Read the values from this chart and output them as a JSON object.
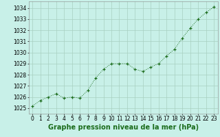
{
  "x": [
    0,
    1,
    2,
    3,
    4,
    5,
    6,
    7,
    8,
    9,
    10,
    11,
    12,
    13,
    14,
    15,
    16,
    17,
    18,
    19,
    20,
    21,
    22,
    23
  ],
  "y": [
    1025.2,
    1025.7,
    1026.0,
    1026.3,
    1025.9,
    1026.0,
    1025.9,
    1026.6,
    1027.7,
    1028.5,
    1029.0,
    1029.0,
    1029.0,
    1028.5,
    1028.3,
    1028.7,
    1029.0,
    1029.7,
    1030.3,
    1031.3,
    1032.2,
    1033.0,
    1033.6,
    1034.1
  ],
  "line_color": "#1a6b1a",
  "marker_color": "#1a6b1a",
  "bg_color": "#c8f0e8",
  "grid_color": "#a8cfc0",
  "title": "Graphe pression niveau de la mer (hPa)",
  "ylim_min": 1024.5,
  "ylim_max": 1034.6,
  "xlim_min": -0.5,
  "xlim_max": 23.5,
  "yticks": [
    1025,
    1026,
    1027,
    1028,
    1029,
    1030,
    1031,
    1032,
    1033,
    1034
  ],
  "xticks": [
    0,
    1,
    2,
    3,
    4,
    5,
    6,
    7,
    8,
    9,
    10,
    11,
    12,
    13,
    14,
    15,
    16,
    17,
    18,
    19,
    20,
    21,
    22,
    23
  ],
  "title_fontsize": 7.0,
  "tick_fontsize": 5.5
}
